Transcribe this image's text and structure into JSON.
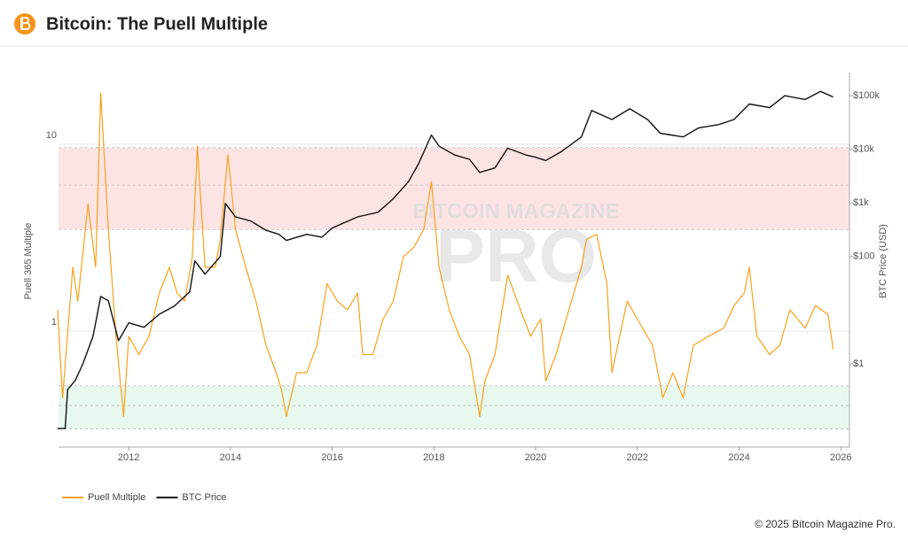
{
  "chart_data": {
    "type": "line",
    "title": "Bitcoin: The Puell Multiple",
    "y_label": "Puell 365 Multiple",
    "y2_label": "BTC Price (USD)",
    "footer": "© 2025 Bitcoin Magazine Pro.",
    "watermark": [
      "BITCOIN MAGAZINE",
      "PRO"
    ],
    "xlim": [
      2010.62,
      2026.17
    ],
    "xticks": [
      2012,
      2014,
      2016,
      2018,
      2020,
      2022,
      2024,
      2026
    ],
    "ylim": [
      0.24,
      24.2
    ],
    "yticks": [
      1,
      10
    ],
    "y2lim": [
      0.028,
      270000
    ],
    "y2ticks": [
      {
        "value": 1,
        "label": "$1"
      },
      {
        "value": 100,
        "label": "$100"
      },
      {
        "value": 1000,
        "label": "$1k"
      },
      {
        "value": 10000,
        "label": "$10k"
      },
      {
        "value": 100000,
        "label": "$100k"
      }
    ],
    "log_scale": true,
    "grid": true,
    "legend": "bottom-left",
    "bands": [
      {
        "from": 3.5,
        "to": 9.6,
        "lines": [
          3.5,
          6.05,
          9.6
        ],
        "color": "#fde4e4"
      },
      {
        "from": 0.3,
        "to": 0.51,
        "lines": [
          0.3,
          0.4,
          0.51
        ],
        "color": "#e7f8ee"
      }
    ],
    "series": [
      {
        "name": "Puell Multiple",
        "color": "#f7a21b",
        "x": [
          2010.6,
          2010.7,
          2010.9,
          2011.0,
          2011.2,
          2011.35,
          2011.45,
          2011.6,
          2011.75,
          2011.9,
          2012.0,
          2012.2,
          2012.4,
          2012.6,
          2012.8,
          2012.95,
          2013.1,
          2013.25,
          2013.35,
          2013.5,
          2013.7,
          2013.8,
          2013.95,
          2014.1,
          2014.3,
          2014.5,
          2014.7,
          2014.9,
          2015.0,
          2015.1,
          2015.3,
          2015.5,
          2015.7,
          2015.9,
          2016.1,
          2016.3,
          2016.5,
          2016.6,
          2016.8,
          2017.0,
          2017.2,
          2017.4,
          2017.6,
          2017.8,
          2017.95,
          2018.1,
          2018.3,
          2018.5,
          2018.7,
          2018.9,
          2019.0,
          2019.2,
          2019.45,
          2019.7,
          2019.9,
          2020.1,
          2020.2,
          2020.4,
          2020.6,
          2020.9,
          2021.0,
          2021.2,
          2021.4,
          2021.5,
          2021.8,
          2022.0,
          2022.3,
          2022.5,
          2022.7,
          2022.9,
          2023.1,
          2023.4,
          2023.7,
          2023.9,
          2024.1,
          2024.2,
          2024.35,
          2024.6,
          2024.8,
          2025.0,
          2025.3,
          2025.5,
          2025.75,
          2025.85
        ],
        "values": [
          1.3,
          0.44,
          2.2,
          1.45,
          4.8,
          2.2,
          18.8,
          3.5,
          0.94,
          0.35,
          0.94,
          0.75,
          0.94,
          1.6,
          2.2,
          1.6,
          1.45,
          2.5,
          9.8,
          2.2,
          2.2,
          3.1,
          8.8,
          3.5,
          2.2,
          1.45,
          0.84,
          0.6,
          0.49,
          0.35,
          0.6,
          0.6,
          0.84,
          1.8,
          1.45,
          1.3,
          1.6,
          0.75,
          0.75,
          1.16,
          1.45,
          2.5,
          2.8,
          3.5,
          6.3,
          2.2,
          1.3,
          0.94,
          0.75,
          0.35,
          0.54,
          0.75,
          2.0,
          1.3,
          0.94,
          1.16,
          0.54,
          0.75,
          1.16,
          2.2,
          3.1,
          3.3,
          1.8,
          0.6,
          1.45,
          1.16,
          0.84,
          0.44,
          0.6,
          0.44,
          0.84,
          0.94,
          1.04,
          1.37,
          1.6,
          2.2,
          0.94,
          0.75,
          0.84,
          1.3,
          1.04,
          1.37,
          1.23,
          0.8
        ]
      },
      {
        "name": "BTC Price",
        "color": "#111111",
        "axis": "y2",
        "x": [
          2010.6,
          2010.75,
          2010.8,
          2010.95,
          2011.1,
          2011.3,
          2011.45,
          2011.6,
          2011.8,
          2012.0,
          2012.3,
          2012.6,
          2012.9,
          2013.2,
          2013.3,
          2013.5,
          2013.8,
          2013.9,
          2014.1,
          2014.4,
          2014.7,
          2014.95,
          2015.1,
          2015.5,
          2015.8,
          2016.0,
          2016.5,
          2016.9,
          2017.2,
          2017.5,
          2017.7,
          2017.95,
          2018.1,
          2018.4,
          2018.7,
          2018.9,
          2019.2,
          2019.45,
          2019.8,
          2020.0,
          2020.2,
          2020.5,
          2020.9,
          2021.1,
          2021.5,
          2021.85,
          2022.2,
          2022.45,
          2022.9,
          2023.2,
          2023.6,
          2023.9,
          2024.2,
          2024.6,
          2024.9,
          2025.3,
          2025.6,
          2025.85
        ],
        "values": [
          0.062,
          0.062,
          0.33,
          0.49,
          1.0,
          3.3,
          18,
          15,
          2.7,
          5.8,
          4.8,
          8.4,
          12,
          22,
          83,
          47,
          100,
          980,
          550,
          460,
          310,
          260,
          200,
          260,
          230,
          340,
          550,
          670,
          1200,
          2500,
          5400,
          18500,
          11500,
          7900,
          6500,
          3700,
          4500,
          10500,
          7900,
          7100,
          6200,
          9000,
          17000,
          53000,
          36000,
          57000,
          36000,
          20000,
          17000,
          25000,
          29000,
          36000,
          70000,
          60000,
          100000,
          85000,
          120000,
          95000
        ]
      }
    ]
  }
}
